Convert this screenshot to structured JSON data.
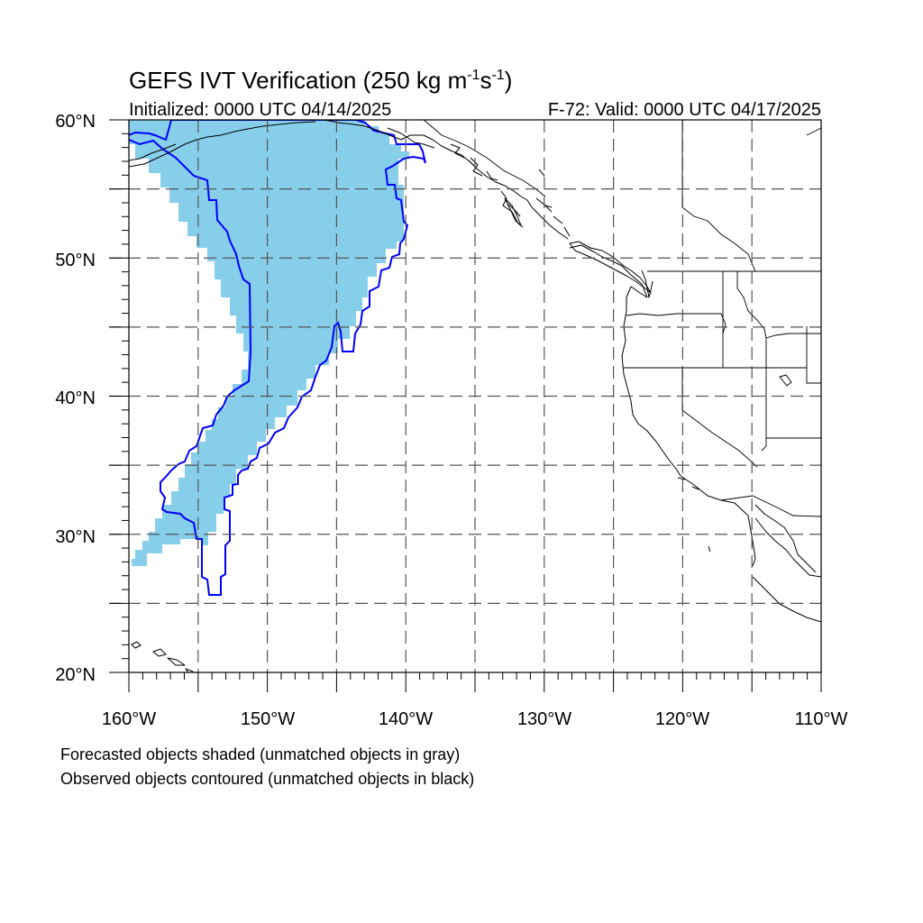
{
  "title": {
    "main": "GEFS IVT Verification (250 kg m",
    "exp1": "-1",
    "mid": "s",
    "exp2": "-1",
    "end": ")"
  },
  "subtitle_left": "Initialized: 0000 UTC 04/14/2025",
  "subtitle_right": "F-72: Valid: 0000 UTC 04/17/2025",
  "lat_labels": [
    "60°N",
    "50°N",
    "40°N",
    "30°N",
    "20°N"
  ],
  "lon_labels": [
    "160°W",
    "150°W",
    "140°W",
    "130°W",
    "120°W",
    "110°W"
  ],
  "footer": [
    "Forecasted objects shaded (unmatched objects in gray)",
    "Observed objects contoured (unmatched objects in black)"
  ],
  "map": {
    "lon_range": [
      -160,
      -110
    ],
    "lat_range": [
      20,
      60
    ],
    "grid_lons": [
      -155,
      -150,
      -145,
      -140,
      -135,
      -130,
      -125,
      -120,
      -115
    ],
    "grid_lats": [
      25,
      30,
      35,
      40,
      45,
      50,
      55
    ],
    "forecast_color": "#87ceeb",
    "observed_color": "#0000ff"
  }
}
